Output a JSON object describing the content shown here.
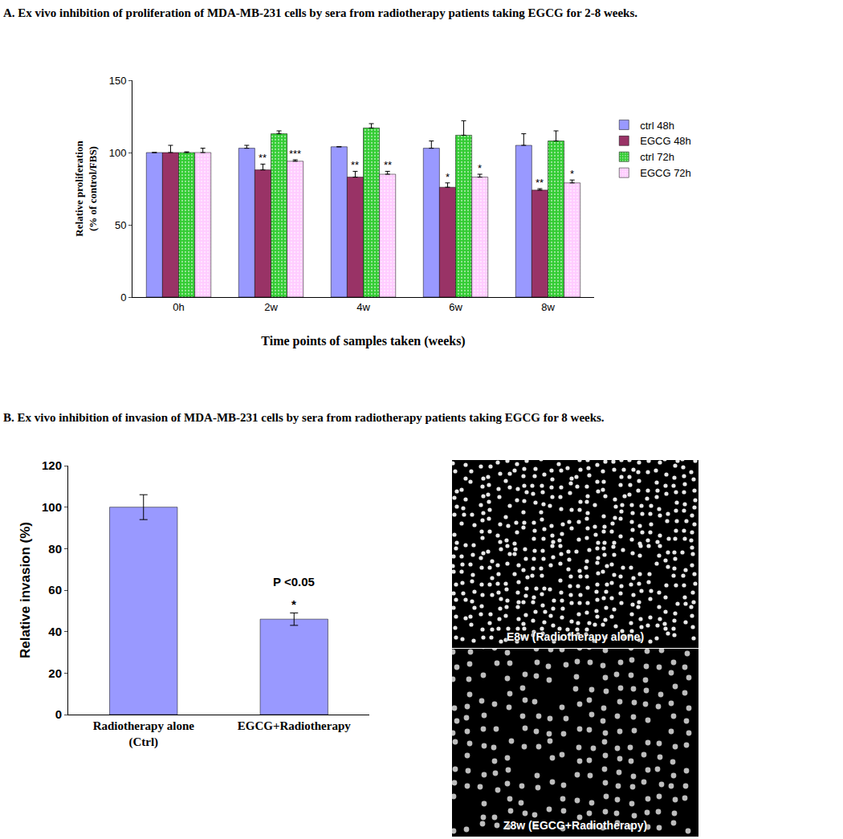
{
  "chart_data": [
    {
      "type": "bar",
      "title": "A. Ex vivo inhibition of proliferation of MDA-MB-231 cells by sera from radiotherapy patients taking EGCG for 2-8 weeks.",
      "x_label": "Time points of samples taken (weeks)",
      "y_label": "Relative proliferation (% of control/FBS)",
      "categories": [
        "0h",
        "2w",
        "4w",
        "6w",
        "8w"
      ],
      "series": [
        {
          "name": "ctrl 48h",
          "color": "#9999ff",
          "values": [
            100,
            103,
            104,
            103,
            105
          ],
          "errors": [
            0,
            2,
            0,
            5,
            8
          ]
        },
        {
          "name": "EGCG 48h",
          "color": "#993366",
          "values": [
            100,
            88,
            83,
            76,
            74
          ],
          "errors": [
            5,
            4,
            4,
            3,
            1
          ],
          "significance": [
            null,
            "**",
            "**",
            "*",
            "**"
          ]
        },
        {
          "name": "ctrl 72h",
          "color": "#33cc33",
          "marker": "dots",
          "values": [
            100,
            113,
            117,
            112,
            108
          ],
          "errors": [
            0.5,
            2,
            3,
            10,
            7
          ]
        },
        {
          "name": "EGCG 72h",
          "color": "#ffccff",
          "marker": "dots",
          "values": [
            100,
            94,
            85,
            83,
            79
          ],
          "errors": [
            3,
            1,
            2,
            2,
            2
          ],
          "significance": [
            null,
            "***",
            "**",
            "*",
            "*"
          ]
        }
      ],
      "ylim": [
        0,
        150
      ],
      "yticks": [
        0,
        50,
        100,
        150
      ],
      "grid": false,
      "legend": "right"
    },
    {
      "type": "bar",
      "title": "B. Ex vivo inhibition of invasion of MDA-MB-231 cells by sera from radiotherapy patients taking EGCG for 8 weeks.",
      "y_label": "Relative invasion (%)",
      "categories": [
        "Radiotherapy alone (Ctrl)",
        "EGCG+Radiotherapy"
      ],
      "values": [
        100,
        46
      ],
      "errors": [
        6,
        3
      ],
      "color": "#9999ff",
      "annotations": [
        {
          "text": "*",
          "x": "EGCG+Radiotherapy",
          "y": 49
        },
        {
          "text": "P <0.05",
          "x": "EGCG+Radiotherapy",
          "y": 60
        }
      ],
      "ylim": [
        0,
        120
      ],
      "yticks": [
        0,
        20,
        40,
        60,
        80,
        100,
        120
      ],
      "grid": false
    }
  ],
  "images": [
    {
      "label": "E8w (Radiotherapy alone)"
    },
    {
      "label": "Z8w (EGCG+Radiotherapy)"
    }
  ]
}
